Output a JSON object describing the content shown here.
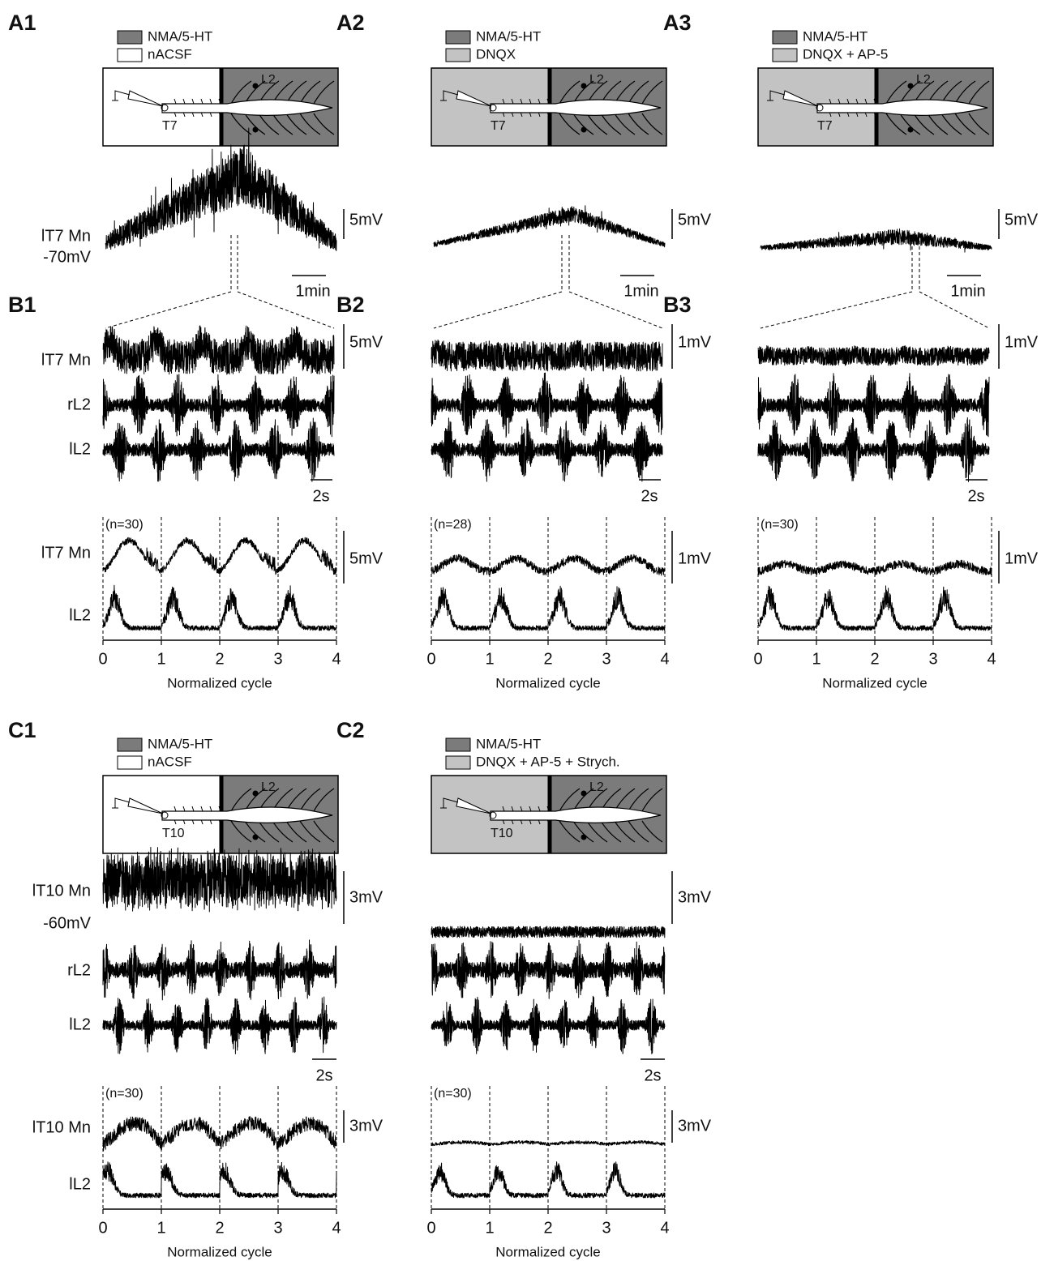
{
  "top_row": [
    {
      "panel": "A1",
      "legend": [
        "NMA/5-HT",
        "nACSF"
      ],
      "diagram": {
        "segment": "T7",
        "root": "L2"
      },
      "recording": {
        "cell": "lT7 Mn",
        "holding": "-70mV",
        "amplitude_scale": "5mV",
        "time_scale": "1min"
      }
    },
    {
      "panel": "A2",
      "legend": [
        "NMA/5-HT",
        "DNQX"
      ],
      "diagram": {
        "segment": "T7",
        "root": "L2"
      },
      "recording": {
        "amplitude_scale": "5mV",
        "time_scale": "1min"
      }
    },
    {
      "panel": "A3",
      "legend": [
        "NMA/5-HT",
        "DNQX + AP-5"
      ],
      "diagram": {
        "segment": "T7",
        "root": "L2"
      },
      "recording": {
        "amplitude_scale": "5mV",
        "time_scale": "1min"
      }
    }
  ],
  "middle_row": [
    {
      "panel": "B1",
      "traces": [
        "lT7 Mn",
        "rL2",
        "lL2"
      ],
      "amplitude_scale": "5mV",
      "time_scale": "2s",
      "average": {
        "n": "(n=30)",
        "traces": [
          "lT7 Mn",
          "lL2"
        ],
        "amplitude_scale": "5mV",
        "xticks": [
          0,
          1,
          2,
          3,
          4
        ],
        "xlabel": "Normalized cycle"
      }
    },
    {
      "panel": "B2",
      "amplitude_scale": "1mV",
      "time_scale": "2s",
      "average": {
        "n": "(n=28)",
        "amplitude_scale": "1mV",
        "xticks": [
          0,
          1,
          2,
          3,
          4
        ],
        "xlabel": "Normalized cycle"
      }
    },
    {
      "panel": "B3",
      "amplitude_scale": "1mV",
      "time_scale": "2s",
      "average": {
        "n": "(n=30)",
        "amplitude_scale": "1mV",
        "xticks": [
          0,
          1,
          2,
          3,
          4
        ],
        "xlabel": "Normalized cycle"
      }
    }
  ],
  "bottom_row": [
    {
      "panel": "C1",
      "legend": [
        "NMA/5-HT",
        "nACSF"
      ],
      "diagram": {
        "segment": "T10",
        "root": "L2"
      },
      "traces": [
        "lT10 Mn",
        "rL2",
        "lL2"
      ],
      "holding": "-60mV",
      "amplitude_scale": "3mV",
      "time_scale": "2s",
      "average": {
        "n": "(n=30)",
        "traces": [
          "lT10 Mn",
          "lL2"
        ],
        "amplitude_scale": "3mV",
        "xticks": [
          0,
          1,
          2,
          3,
          4
        ],
        "xlabel": "Normalized cycle"
      }
    },
    {
      "panel": "C2",
      "legend": [
        "NMA/5-HT",
        "DNQX + AP-5 + Strych."
      ],
      "diagram": {
        "segment": "T10",
        "root": "L2"
      },
      "amplitude_scale": "3mV",
      "time_scale": "2s",
      "average": {
        "n": "(n=30)",
        "amplitude_scale": "3mV",
        "xticks": [
          0,
          1,
          2,
          3,
          4
        ],
        "xlabel": "Normalized cycle"
      }
    }
  ]
}
